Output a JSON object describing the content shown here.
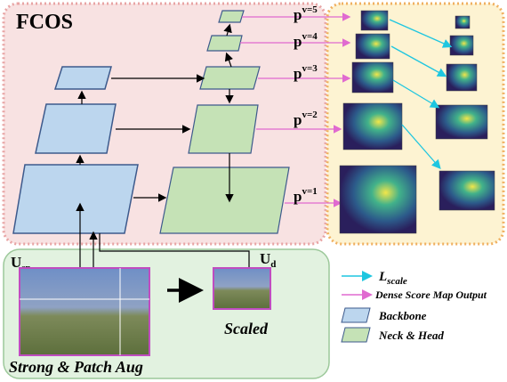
{
  "title": "FCOS",
  "levels": [
    {
      "base": "p",
      "sup": "v=5"
    },
    {
      "base": "p",
      "sup": "v=4"
    },
    {
      "base": "p",
      "sup": "v=3"
    },
    {
      "base": "p",
      "sup": "v=2"
    },
    {
      "base": "p",
      "sup": "v=1"
    }
  ],
  "inputs": {
    "strong": {
      "base": "U",
      "sub": "sp"
    },
    "scaled": {
      "base": "U",
      "sub": "d"
    },
    "scaled_caption": "Scaled",
    "strong_caption": "Strong & Patch Aug"
  },
  "legend": {
    "scale_loss": {
      "base": "L",
      "sub": "scale"
    },
    "dense": "Dense Score Map Output",
    "backbone": "Backbone",
    "neck": "Neck & Head"
  }
}
